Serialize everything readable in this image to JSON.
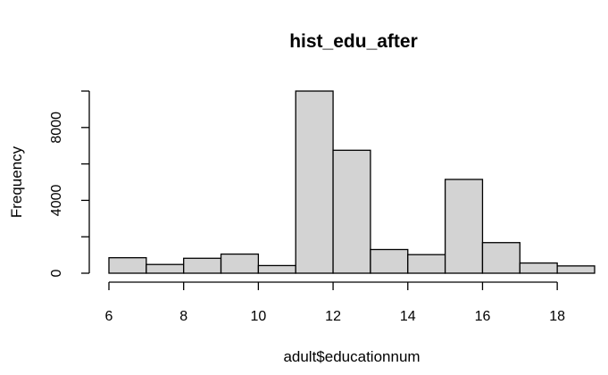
{
  "chart_data": {
    "type": "bar",
    "title": "hist_edu_after",
    "xlabel": "adult$educationnum",
    "ylabel": "Frequency",
    "bins": [
      {
        "from": 6,
        "to": 7,
        "count": 850
      },
      {
        "from": 7,
        "to": 8,
        "count": 480
      },
      {
        "from": 8,
        "to": 9,
        "count": 820
      },
      {
        "from": 9,
        "to": 10,
        "count": 1050
      },
      {
        "from": 10,
        "to": 11,
        "count": 420
      },
      {
        "from": 11,
        "to": 12,
        "count": 10000
      },
      {
        "from": 12,
        "to": 13,
        "count": 6750
      },
      {
        "from": 13,
        "to": 14,
        "count": 1300
      },
      {
        "from": 14,
        "to": 15,
        "count": 1020
      },
      {
        "from": 15,
        "to": 16,
        "count": 5150
      },
      {
        "from": 16,
        "to": 17,
        "count": 1680
      },
      {
        "from": 17,
        "to": 18,
        "count": 560
      },
      {
        "from": 18,
        "to": 19,
        "count": 400
      }
    ],
    "xlim": [
      6,
      19
    ],
    "ylim": [
      0,
      10000
    ],
    "x_ticks": [
      6,
      8,
      10,
      12,
      14,
      16,
      18
    ],
    "y_ticks": [
      0,
      2000,
      4000,
      6000,
      8000,
      10000
    ],
    "y_tick_labels": [
      "0",
      "",
      "4000",
      "",
      "8000",
      ""
    ],
    "bar_fill": "#d3d3d3",
    "bar_stroke": "#000000",
    "grid": false
  }
}
